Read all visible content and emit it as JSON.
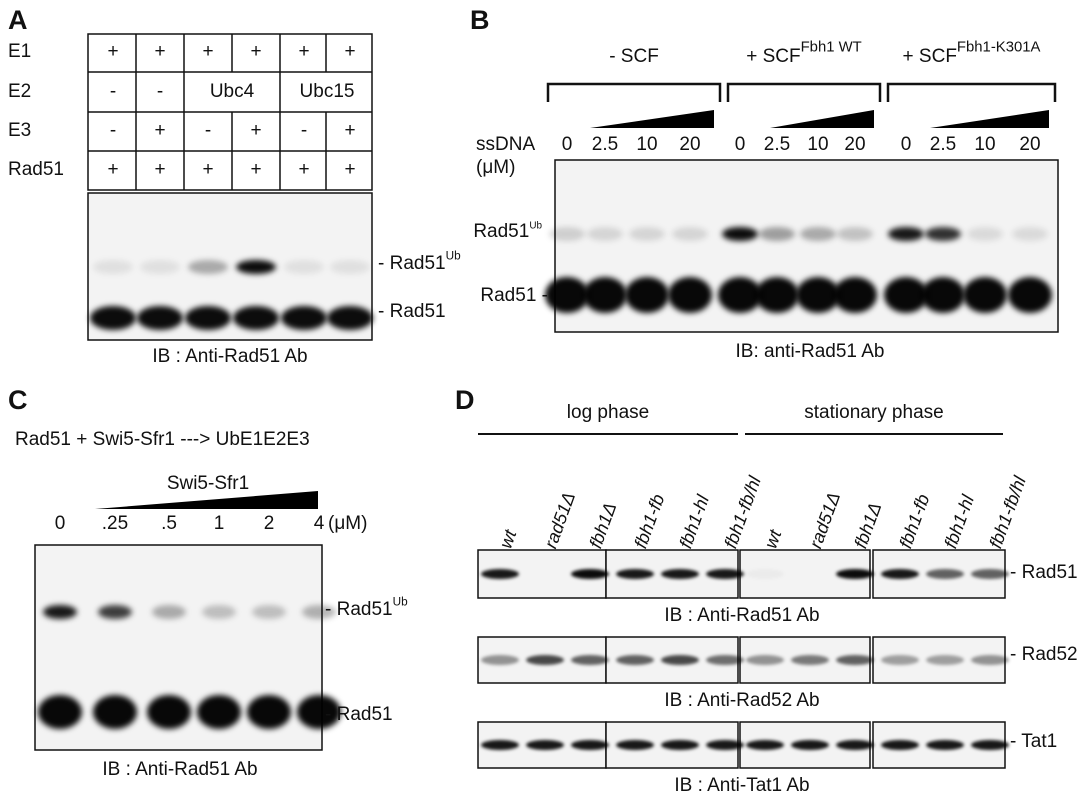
{
  "panel_a": {
    "label": "A",
    "rows": [
      {
        "name": "E1",
        "cells": [
          "+",
          "+",
          "+",
          "+",
          "+",
          "+"
        ]
      },
      {
        "name": "E2",
        "cells": [
          "-",
          "-",
          "Ubc4",
          "Ubc15"
        ]
      },
      {
        "name": "E3",
        "cells": [
          "-",
          "+",
          "-",
          "+",
          "-",
          "+"
        ]
      },
      {
        "name": "Rad51",
        "cells": [
          "+",
          "+",
          "+",
          "+",
          "+",
          "+"
        ]
      }
    ],
    "band_ub": {
      "text": "- Rad51",
      "sup": "Ub"
    },
    "band_rad51": "- Rad51",
    "caption": "IB : Anti-Rad51 Ab"
  },
  "panel_b": {
    "label": "B",
    "groups": [
      {
        "text": "- SCF",
        "sup": ""
      },
      {
        "text": "+ SCF",
        "sup": "Fbh1 WT"
      },
      {
        "text": "+ SCF",
        "sup": "Fbh1-K301A"
      }
    ],
    "ssdna_label": "ssDNA",
    "unit": "(μM)",
    "concentrations": [
      "0",
      "2.5",
      "10",
      "20"
    ],
    "band_ub": {
      "text": "Rad51",
      "sup": "Ub"
    },
    "band_rad51": "Rad51 -",
    "caption": "IB: anti-Rad51 Ab"
  },
  "panel_c": {
    "label": "C",
    "reaction": "Rad51 + Swi5-Sfr1 ---> UbE1E2E3",
    "titrant": "Swi5-Sfr1",
    "concentrations": [
      "0",
      ".25",
      ".5",
      "1",
      "2",
      "4"
    ],
    "unit": "(μM)",
    "band_ub": {
      "text": "- Rad51",
      "sup": "Ub"
    },
    "band_rad51": "- Rad51",
    "caption": "IB : Anti-Rad51 Ab"
  },
  "panel_d": {
    "label": "D",
    "phases": [
      {
        "name": "log phase",
        "strains": [
          "wt",
          "rad51Δ",
          "fbh1Δ",
          "fbh1-fb",
          "fbh1-hl",
          "fbh1-fb/hl"
        ]
      },
      {
        "name": "stationary phase",
        "strains": [
          "wt",
          "rad51Δ",
          "fbh1Δ",
          "fbh1-fb",
          "fbh1-hl",
          "fbh1-fb/hl"
        ]
      }
    ],
    "blots": [
      {
        "side_label": "- Rad51",
        "caption": "IB : Anti-Rad51 Ab"
      },
      {
        "side_label": "- Rad52",
        "caption": "IB : Anti-Rad52 Ab"
      },
      {
        "side_label": "- Tat1",
        "caption": "IB : Anti-Tat1 Ab"
      }
    ]
  }
}
